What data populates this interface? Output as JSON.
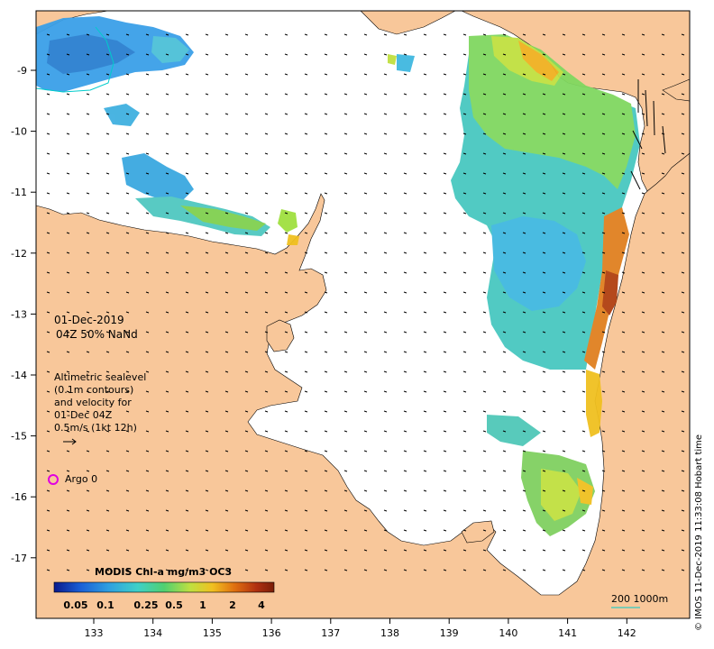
{
  "map": {
    "date": "01-Dec-2019",
    "time_info": "04Z  50% NaNd",
    "altimetry_lines": [
      "Altimetric sealevel",
      "(0.1m contours)",
      "and velocity for",
      "01-Dec 04Z",
      "0.5m/s (1kt 12h)"
    ],
    "argo_label": "Argo 0",
    "lon_ticks": [
      "133",
      "134",
      "135",
      "136",
      "137",
      "138",
      "139",
      "140",
      "141",
      "142"
    ],
    "lat_ticks": [
      "-9",
      "-10",
      "-11",
      "-12",
      "-13",
      "-14",
      "-15",
      "-16",
      "-17"
    ],
    "credit": "© IMOS 11-Dec-2019 11:33:08 Hobart time",
    "scale_label": "200  1000m"
  },
  "colorbar": {
    "title": "MODIS Chl-a mg/m3 OC3",
    "ticks": [
      "0.05",
      "0.1",
      "0.25",
      "0.5",
      "1",
      "2",
      "4"
    ],
    "colors": [
      "#0a1a8c",
      "#1a5fd6",
      "#2fa0e0",
      "#3fd0c8",
      "#50d070",
      "#c0e040",
      "#f0c020",
      "#e07010",
      "#b03010",
      "#7a1e08"
    ]
  },
  "colors": {
    "land": "#f8c79a",
    "ocean": "#ffffff",
    "argo": "#e000e0",
    "contour": "#00cccc"
  }
}
